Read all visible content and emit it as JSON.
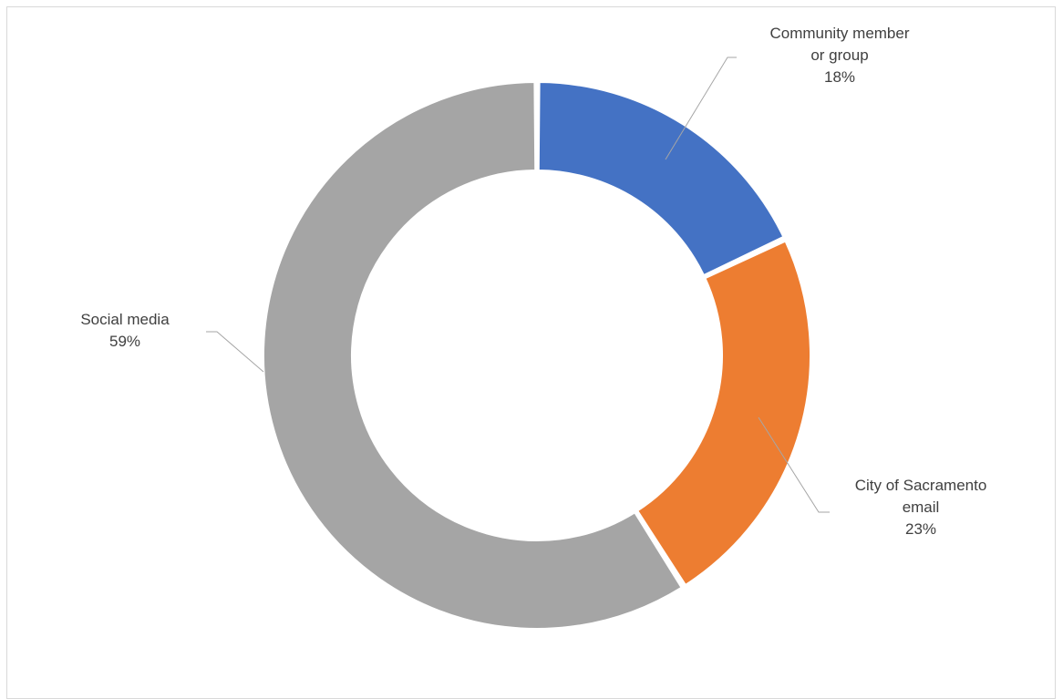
{
  "chart_data": {
    "type": "pie",
    "variant": "donut",
    "title": "",
    "categories": [
      "Community member or group",
      "City of Sacramento email",
      "Social media"
    ],
    "values": [
      18,
      23,
      59
    ],
    "unit": "%",
    "colors": [
      "#4472c4",
      "#ed7d31",
      "#a5a5a5"
    ],
    "data_labels": [
      {
        "lines": [
          "Community member",
          "or group"
        ],
        "value_text": "18%"
      },
      {
        "lines": [
          "City of Sacramento",
          "email"
        ],
        "value_text": "23%"
      },
      {
        "lines": [
          "Social media"
        ],
        "value_text": "59%"
      }
    ],
    "legend": "none",
    "start_angle": "12 o'clock",
    "direction": "clockwise"
  }
}
